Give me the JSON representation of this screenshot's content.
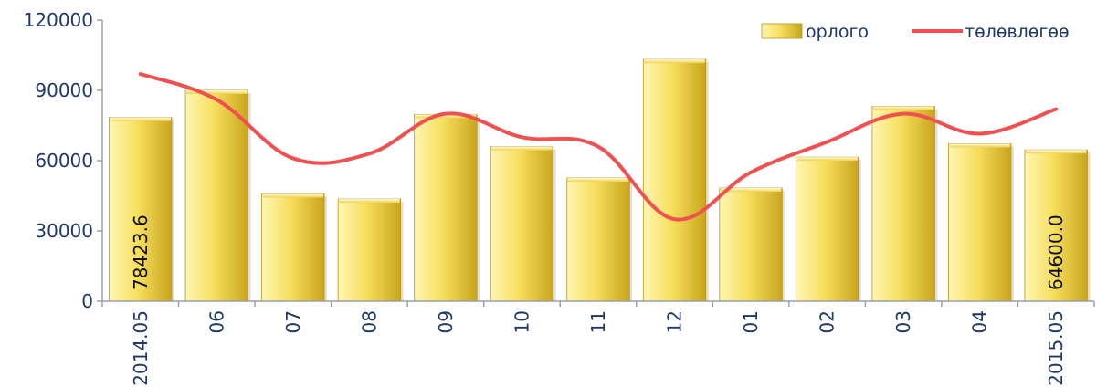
{
  "chart_data": {
    "type": "bar",
    "categories": [
      "2014.05",
      "06",
      "07",
      "08",
      "09",
      "10",
      "11",
      "12",
      "01",
      "02",
      "03",
      "04",
      "2015.05"
    ],
    "series": [
      {
        "name": "орлого",
        "type": "bar",
        "values": [
          78423.6,
          90000,
          45800,
          43600,
          79700,
          66000,
          52600,
          103200,
          48300,
          61500,
          83200,
          67200,
          64600.0
        ]
      },
      {
        "name": "төлөвлөгөө",
        "type": "line",
        "smooth": true,
        "values": [
          97000,
          86000,
          61000,
          63000,
          80000,
          70000,
          66000,
          35000,
          55000,
          68000,
          80000,
          71500,
          82000
        ]
      }
    ],
    "data_labels": [
      "78423.6",
      "",
      "",
      "",
      "",
      "",
      "",
      "",
      "",
      "",
      "",
      "",
      "64600.0"
    ],
    "y_ticks": [
      "0",
      "30000",
      "60000",
      "90000",
      "120000"
    ],
    "ylim": [
      0,
      120000
    ],
    "legend": "top-right",
    "grid": false,
    "colors": {
      "bar_light": "#fff6b3",
      "bar_mid": "#f7df5e",
      "bar_dark": "#c9a51c",
      "line": "#f05050",
      "axis": "#9aa0aa",
      "text": "#1f3864"
    }
  }
}
